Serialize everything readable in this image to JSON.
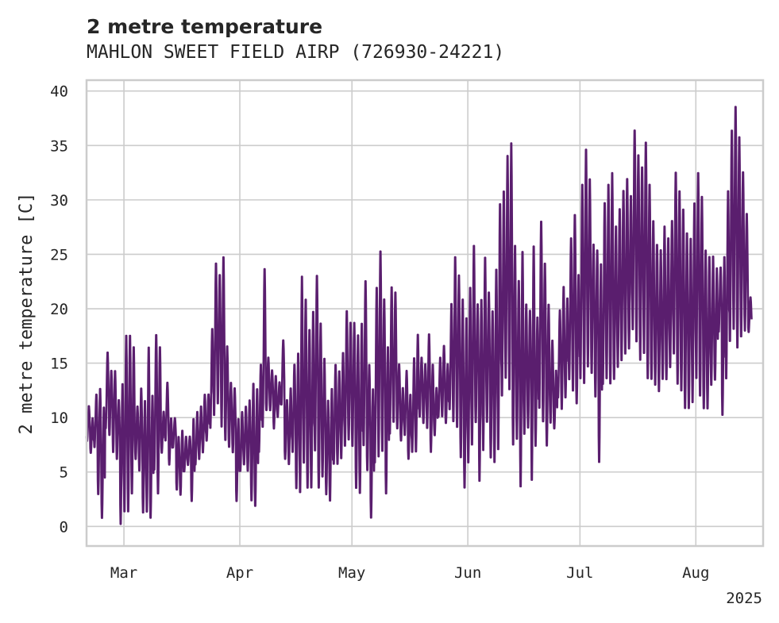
{
  "chart_data": {
    "type": "line",
    "title": "2 metre temperature",
    "subtitle": "MAHLON SWEET FIELD AIRP (726930-24221)",
    "xlabel": "",
    "ylabel": "2 metre temperature [C]",
    "xlim": [
      "2025-02-19",
      "2025-08-19"
    ],
    "ylim": [
      -1.8,
      41
    ],
    "x_ticks": [
      {
        "label": "Mar",
        "date": "2025-03-01"
      },
      {
        "label": "Apr",
        "date": "2025-04-01"
      },
      {
        "label": "May",
        "date": "2025-05-01"
      },
      {
        "label": "Jun",
        "date": "2025-06-01"
      },
      {
        "label": "Jul",
        "date": "2025-07-01"
      },
      {
        "label": "Aug",
        "date": "2025-08-01"
      }
    ],
    "x_offset_label": "2025",
    "y_ticks": [
      0,
      5,
      10,
      15,
      20,
      25,
      30,
      35,
      40
    ],
    "grid": true,
    "series": [
      {
        "color": "#5a1e6e",
        "resolution": "hourly",
        "daily_min_max": [
          [
            "2025-02-19",
            7.8,
            11.1
          ],
          [
            "2025-02-20",
            6.7,
            10.0
          ],
          [
            "2025-02-21",
            7.2,
            12.2
          ],
          [
            "2025-02-22",
            2.8,
            12.8
          ],
          [
            "2025-02-23",
            0.6,
            11.1
          ],
          [
            "2025-02-24",
            8.9,
            16.1
          ],
          [
            "2025-02-25",
            8.3,
            14.4
          ],
          [
            "2025-02-26",
            6.7,
            14.4
          ],
          [
            "2025-02-27",
            6.1,
            11.7
          ],
          [
            "2025-02-28",
            0.0,
            13.3
          ],
          [
            "2025-03-01",
            1.1,
            17.8
          ],
          [
            "2025-03-02",
            1.1,
            17.8
          ],
          [
            "2025-03-03",
            2.8,
            16.7
          ],
          [
            "2025-03-04",
            6.1,
            11.1
          ],
          [
            "2025-03-05",
            5.0,
            12.8
          ],
          [
            "2025-03-06",
            1.1,
            11.7
          ],
          [
            "2025-03-07",
            1.1,
            16.7
          ],
          [
            "2025-03-08",
            0.6,
            12.2
          ],
          [
            "2025-03-09",
            5.0,
            17.8
          ],
          [
            "2025-03-10",
            2.8,
            16.7
          ],
          [
            "2025-03-11",
            6.7,
            10.6
          ],
          [
            "2025-03-12",
            7.8,
            13.3
          ],
          [
            "2025-03-13",
            5.6,
            10.0
          ],
          [
            "2025-03-14",
            7.2,
            10.0
          ],
          [
            "2025-03-15",
            3.3,
            8.3
          ],
          [
            "2025-03-16",
            2.8,
            8.9
          ],
          [
            "2025-03-17",
            5.0,
            8.3
          ],
          [
            "2025-03-18",
            5.6,
            8.3
          ],
          [
            "2025-03-19",
            2.2,
            10.0
          ],
          [
            "2025-03-20",
            5.6,
            10.6
          ],
          [
            "2025-03-21",
            6.1,
            11.1
          ],
          [
            "2025-03-22",
            6.7,
            12.2
          ],
          [
            "2025-03-23",
            7.8,
            12.2
          ],
          [
            "2025-03-24",
            8.9,
            18.3
          ],
          [
            "2025-03-25",
            10.0,
            24.4
          ],
          [
            "2025-03-26",
            11.1,
            23.3
          ],
          [
            "2025-03-27",
            8.9,
            25.0
          ],
          [
            "2025-03-28",
            7.8,
            16.7
          ],
          [
            "2025-03-29",
            7.2,
            13.3
          ],
          [
            "2025-03-30",
            6.7,
            12.8
          ],
          [
            "2025-03-31",
            2.2,
            10.0
          ],
          [
            "2025-04-01",
            5.0,
            10.6
          ],
          [
            "2025-04-02",
            5.6,
            11.1
          ],
          [
            "2025-04-03",
            5.0,
            11.7
          ],
          [
            "2025-04-04",
            2.2,
            13.3
          ],
          [
            "2025-04-05",
            1.7,
            12.8
          ],
          [
            "2025-04-06",
            6.7,
            15.0
          ],
          [
            "2025-04-07",
            8.9,
            23.9
          ],
          [
            "2025-04-08",
            10.6,
            15.6
          ],
          [
            "2025-04-09",
            10.6,
            14.4
          ],
          [
            "2025-04-10",
            8.9,
            13.9
          ],
          [
            "2025-04-11",
            10.0,
            13.3
          ],
          [
            "2025-04-12",
            11.1,
            17.2
          ],
          [
            "2025-04-13",
            6.1,
            11.7
          ],
          [
            "2025-04-14",
            5.6,
            12.8
          ],
          [
            "2025-04-15",
            6.7,
            15.0
          ],
          [
            "2025-04-16",
            3.3,
            16.1
          ],
          [
            "2025-04-17",
            2.8,
            23.3
          ],
          [
            "2025-04-18",
            5.6,
            21.1
          ],
          [
            "2025-04-19",
            3.3,
            18.3
          ],
          [
            "2025-04-20",
            3.3,
            20.0
          ],
          [
            "2025-04-21",
            6.7,
            23.3
          ],
          [
            "2025-04-22",
            3.3,
            18.9
          ],
          [
            "2025-04-23",
            4.4,
            15.6
          ],
          [
            "2025-04-24",
            2.8,
            11.7
          ],
          [
            "2025-04-25",
            2.2,
            12.8
          ],
          [
            "2025-04-26",
            5.6,
            15.0
          ],
          [
            "2025-04-27",
            5.6,
            14.4
          ],
          [
            "2025-04-28",
            6.1,
            16.1
          ],
          [
            "2025-04-29",
            7.2,
            20.0
          ],
          [
            "2025-04-30",
            7.8,
            18.9
          ],
          [
            "2025-05-01",
            7.2,
            18.9
          ],
          [
            "2025-05-02",
            3.3,
            17.8
          ],
          [
            "2025-05-03",
            2.8,
            18.9
          ],
          [
            "2025-05-04",
            7.2,
            22.8
          ],
          [
            "2025-05-05",
            5.0,
            15.0
          ],
          [
            "2025-05-06",
            0.6,
            12.8
          ],
          [
            "2025-05-07",
            5.6,
            22.2
          ],
          [
            "2025-05-08",
            6.1,
            25.6
          ],
          [
            "2025-05-09",
            6.7,
            21.1
          ],
          [
            "2025-05-10",
            2.8,
            16.7
          ],
          [
            "2025-05-11",
            8.3,
            22.2
          ],
          [
            "2025-05-12",
            9.4,
            21.7
          ],
          [
            "2025-05-13",
            8.9,
            15.0
          ],
          [
            "2025-05-14",
            7.8,
            12.8
          ],
          [
            "2025-05-15",
            8.3,
            14.4
          ],
          [
            "2025-05-16",
            6.1,
            12.2
          ],
          [
            "2025-05-17",
            6.7,
            15.6
          ],
          [
            "2025-05-18",
            6.7,
            17.8
          ],
          [
            "2025-05-19",
            10.0,
            15.6
          ],
          [
            "2025-05-20",
            9.4,
            15.0
          ],
          [
            "2025-05-21",
            8.9,
            17.8
          ],
          [
            "2025-05-22",
            6.7,
            15.0
          ],
          [
            "2025-05-23",
            8.3,
            12.8
          ],
          [
            "2025-05-24",
            10.0,
            15.6
          ],
          [
            "2025-05-25",
            10.0,
            16.7
          ],
          [
            "2025-05-26",
            9.4,
            15.0
          ],
          [
            "2025-05-27",
            10.6,
            20.6
          ],
          [
            "2025-05-28",
            9.4,
            25.0
          ],
          [
            "2025-05-29",
            8.9,
            23.3
          ],
          [
            "2025-05-30",
            6.1,
            21.1
          ],
          [
            "2025-05-31",
            3.3,
            19.4
          ],
          [
            "2025-06-01",
            5.6,
            22.2
          ],
          [
            "2025-06-02",
            7.2,
            26.1
          ],
          [
            "2025-06-03",
            9.4,
            20.6
          ],
          [
            "2025-06-04",
            3.9,
            21.1
          ],
          [
            "2025-06-05",
            6.7,
            25.0
          ],
          [
            "2025-06-06",
            9.4,
            21.7
          ],
          [
            "2025-06-07",
            6.1,
            20.0
          ],
          [
            "2025-06-08",
            5.6,
            23.9
          ],
          [
            "2025-06-09",
            6.7,
            30.0
          ],
          [
            "2025-06-10",
            11.7,
            31.1
          ],
          [
            "2025-06-11",
            13.3,
            34.4
          ],
          [
            "2025-06-12",
            12.2,
            35.6
          ],
          [
            "2025-06-13",
            7.2,
            26.1
          ],
          [
            "2025-06-14",
            7.8,
            22.8
          ],
          [
            "2025-06-15",
            3.3,
            25.6
          ],
          [
            "2025-06-16",
            8.3,
            20.6
          ],
          [
            "2025-06-17",
            8.9,
            20.0
          ],
          [
            "2025-06-18",
            3.9,
            26.1
          ],
          [
            "2025-06-19",
            7.2,
            19.4
          ],
          [
            "2025-06-20",
            10.6,
            28.3
          ],
          [
            "2025-06-21",
            9.4,
            24.4
          ],
          [
            "2025-06-22",
            7.2,
            20.6
          ],
          [
            "2025-06-23",
            9.4,
            17.2
          ],
          [
            "2025-06-24",
            8.9,
            14.4
          ],
          [
            "2025-06-25",
            11.7,
            20.0
          ],
          [
            "2025-06-26",
            10.6,
            22.2
          ],
          [
            "2025-06-27",
            11.7,
            21.1
          ],
          [
            "2025-06-28",
            13.3,
            26.7
          ],
          [
            "2025-06-29",
            12.2,
            28.9
          ],
          [
            "2025-06-30",
            11.1,
            23.3
          ],
          [
            "2025-07-01",
            13.3,
            31.7
          ],
          [
            "2025-07-02",
            12.8,
            35.0
          ],
          [
            "2025-07-03",
            14.4,
            32.2
          ],
          [
            "2025-07-04",
            13.9,
            26.1
          ],
          [
            "2025-07-05",
            11.7,
            25.6
          ],
          [
            "2025-07-06",
            5.6,
            24.4
          ],
          [
            "2025-07-07",
            12.8,
            30.0
          ],
          [
            "2025-07-08",
            13.3,
            31.7
          ],
          [
            "2025-07-09",
            12.8,
            32.8
          ],
          [
            "2025-07-10",
            13.3,
            27.8
          ],
          [
            "2025-07-11",
            14.4,
            29.4
          ],
          [
            "2025-07-12",
            15.0,
            31.1
          ],
          [
            "2025-07-13",
            15.6,
            32.2
          ],
          [
            "2025-07-14",
            16.1,
            30.6
          ],
          [
            "2025-07-15",
            17.8,
            36.7
          ],
          [
            "2025-07-16",
            16.7,
            34.4
          ],
          [
            "2025-07-17",
            15.0,
            33.3
          ],
          [
            "2025-07-18",
            15.6,
            35.6
          ],
          [
            "2025-07-19",
            13.3,
            31.7
          ],
          [
            "2025-07-20",
            13.3,
            28.3
          ],
          [
            "2025-07-21",
            12.8,
            26.1
          ],
          [
            "2025-07-22",
            12.2,
            25.6
          ],
          [
            "2025-07-23",
            13.3,
            27.8
          ],
          [
            "2025-07-24",
            13.3,
            26.7
          ],
          [
            "2025-07-25",
            14.4,
            28.3
          ],
          [
            "2025-07-26",
            15.6,
            32.8
          ],
          [
            "2025-07-27",
            12.8,
            31.1
          ],
          [
            "2025-07-28",
            12.2,
            29.4
          ],
          [
            "2025-07-29",
            10.6,
            27.2
          ],
          [
            "2025-07-30",
            10.6,
            26.7
          ],
          [
            "2025-07-31",
            11.1,
            30.0
          ],
          [
            "2025-08-01",
            13.3,
            32.8
          ],
          [
            "2025-08-02",
            11.7,
            30.6
          ],
          [
            "2025-08-03",
            10.6,
            25.6
          ],
          [
            "2025-08-04",
            10.6,
            25.0
          ],
          [
            "2025-08-05",
            12.8,
            25.0
          ],
          [
            "2025-08-06",
            13.3,
            23.9
          ],
          [
            "2025-08-07",
            17.8,
            23.9
          ],
          [
            "2025-08-08",
            10.0,
            25.0
          ],
          [
            "2025-08-09",
            13.3,
            31.1
          ],
          [
            "2025-08-10",
            16.7,
            36.7
          ],
          [
            "2025-08-11",
            17.8,
            38.9
          ],
          [
            "2025-08-12",
            16.1,
            36.1
          ],
          [
            "2025-08-13",
            17.2,
            32.8
          ],
          [
            "2025-08-14",
            17.8,
            28.9
          ],
          [
            "2025-08-15",
            17.8,
            21.1
          ]
        ]
      }
    ]
  }
}
